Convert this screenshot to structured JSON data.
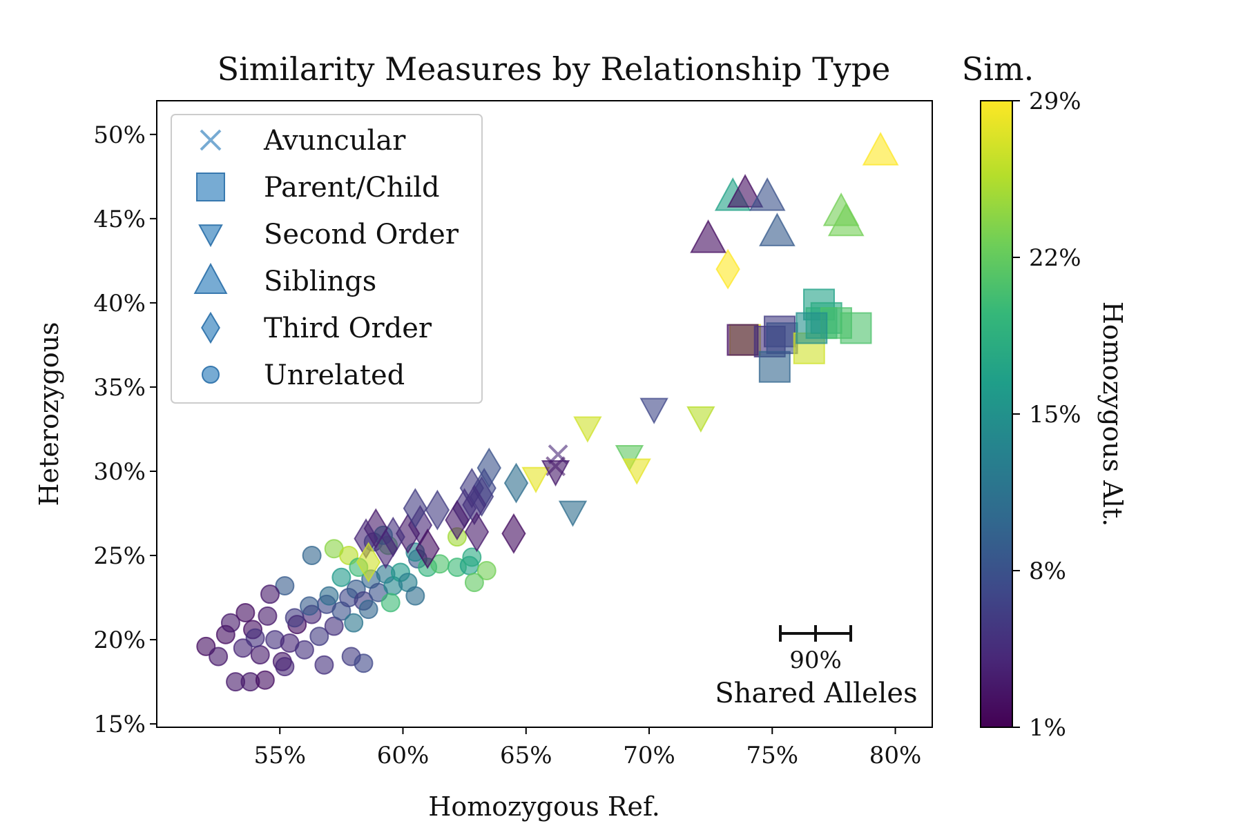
{
  "chart_data": {
    "type": "scatter",
    "title": "Similarity Measures by Relationship Type",
    "xlabel": "Homozygous Ref.",
    "ylabel": "Heterozygous",
    "xlim": [
      50,
      81.5
    ],
    "ylim": [
      14.8,
      52
    ],
    "x_ticks": [
      55,
      60,
      65,
      70,
      75,
      80
    ],
    "x_tick_labels": [
      "55%",
      "60%",
      "65%",
      "70%",
      "75%",
      "80%"
    ],
    "y_ticks": [
      15,
      20,
      25,
      30,
      35,
      40,
      45,
      50
    ],
    "y_tick_labels": [
      "15%",
      "20%",
      "25%",
      "30%",
      "35%",
      "40%",
      "45%",
      "50%"
    ],
    "grid": false,
    "legend_position": "upper-left",
    "colorbar": {
      "title": "Sim.",
      "label": "Homozygous Alt.",
      "range": [
        1,
        29
      ],
      "ticks": [
        1,
        8,
        15,
        22,
        29
      ],
      "tick_labels": [
        "1%",
        "8%",
        "15%",
        "22%",
        "29%"
      ],
      "colormap": [
        "#440154",
        "#482878",
        "#3e4989",
        "#31688e",
        "#26828e",
        "#1f9e89",
        "#35b779",
        "#6ece58",
        "#b5de2b",
        "#fde725"
      ]
    },
    "size_key": {
      "label": "Shared Alleles",
      "value_label": "90%"
    },
    "series": [
      {
        "name": "Avuncular",
        "marker": "x",
        "points": [
          [
            66.3,
            31.0,
            4
          ],
          [
            66.2,
            30.3,
            3
          ]
        ]
      },
      {
        "name": "Parent/Child",
        "marker": "square",
        "points": [
          [
            73.9,
            37.8,
            28
          ],
          [
            73.8,
            37.8,
            2
          ],
          [
            74.9,
            37.7,
            5
          ],
          [
            75.3,
            38.3,
            6
          ],
          [
            75.1,
            36.2,
            10
          ],
          [
            75.4,
            37.9,
            8
          ],
          [
            76.5,
            37.3,
            27
          ],
          [
            76.9,
            39.9,
            17
          ],
          [
            77.0,
            38.8,
            19
          ],
          [
            77.2,
            39.1,
            18
          ],
          [
            77.6,
            38.8,
            21
          ],
          [
            78.4,
            38.5,
            21
          ],
          [
            76.6,
            38.5,
            15
          ]
        ]
      },
      {
        "name": "Second Order",
        "marker": "triangle-down",
        "points": [
          [
            67.5,
            32.6,
            27
          ],
          [
            70.2,
            33.7,
            7
          ],
          [
            72.1,
            33.2,
            26
          ],
          [
            69.2,
            30.9,
            22
          ],
          [
            69.5,
            30.1,
            28
          ],
          [
            65.4,
            29.6,
            28
          ],
          [
            66.2,
            30.0,
            3
          ],
          [
            66.9,
            27.6,
            11
          ]
        ]
      },
      {
        "name": "Siblings",
        "marker": "triangle-up",
        "points": [
          [
            79.4,
            49.0,
            29
          ],
          [
            73.4,
            46.3,
            17
          ],
          [
            73.9,
            46.5,
            2
          ],
          [
            74.8,
            46.3,
            8
          ],
          [
            75.2,
            44.2,
            9
          ],
          [
            77.8,
            45.4,
            23
          ],
          [
            78.0,
            44.8,
            23
          ],
          [
            72.4,
            43.8,
            2
          ]
        ]
      },
      {
        "name": "Third Order",
        "marker": "diamond",
        "points": [
          [
            73.2,
            42.0,
            29
          ],
          [
            64.6,
            29.3,
            11
          ],
          [
            63.5,
            30.2,
            8
          ],
          [
            63.3,
            29.0,
            7
          ],
          [
            62.8,
            29.0,
            6
          ],
          [
            63.2,
            28.5,
            6
          ],
          [
            62.9,
            28.0,
            5
          ],
          [
            62.5,
            27.8,
            5
          ],
          [
            61.4,
            27.7,
            6
          ],
          [
            60.7,
            26.8,
            4
          ],
          [
            60.2,
            26.3,
            3
          ],
          [
            59.6,
            26.1,
            5
          ],
          [
            58.9,
            26.6,
            3
          ],
          [
            58.5,
            26.0,
            4
          ],
          [
            59.3,
            25.4,
            4
          ],
          [
            58.6,
            24.6,
            27
          ],
          [
            61.0,
            25.4,
            2
          ],
          [
            62.2,
            27.1,
            3
          ],
          [
            63.0,
            26.4,
            3
          ],
          [
            64.5,
            26.3,
            2
          ],
          [
            60.5,
            27.8,
            6
          ]
        ]
      },
      {
        "name": "Unrelated",
        "marker": "circle",
        "points": [
          [
            52.0,
            19.6,
            2
          ],
          [
            52.5,
            19.0,
            3
          ],
          [
            52.8,
            20.3,
            2
          ],
          [
            53.0,
            21.0,
            3
          ],
          [
            53.5,
            19.5,
            4
          ],
          [
            53.9,
            20.6,
            2
          ],
          [
            54.2,
            19.1,
            3
          ],
          [
            54.5,
            21.4,
            3
          ],
          [
            54.8,
            20.0,
            5
          ],
          [
            55.1,
            18.7,
            3
          ],
          [
            55.4,
            19.8,
            4
          ],
          [
            55.7,
            20.9,
            2
          ],
          [
            56.0,
            19.4,
            5
          ],
          [
            56.3,
            21.5,
            4
          ],
          [
            56.6,
            20.2,
            6
          ],
          [
            56.9,
            22.1,
            7
          ],
          [
            57.2,
            20.8,
            5
          ],
          [
            57.5,
            21.7,
            8
          ],
          [
            57.8,
            22.5,
            7
          ],
          [
            58.1,
            23.0,
            9
          ],
          [
            58.4,
            22.3,
            6
          ],
          [
            58.7,
            23.6,
            10
          ],
          [
            59.0,
            22.8,
            8
          ],
          [
            59.3,
            23.9,
            12
          ],
          [
            59.6,
            23.2,
            14
          ],
          [
            59.9,
            24.0,
            16
          ],
          [
            60.2,
            23.4,
            13
          ],
          [
            60.5,
            22.6,
            11
          ],
          [
            53.2,
            17.5,
            3
          ],
          [
            53.8,
            17.5,
            3
          ],
          [
            54.4,
            17.6,
            2
          ],
          [
            55.2,
            18.4,
            4
          ],
          [
            56.8,
            18.5,
            5
          ],
          [
            57.9,
            19.0,
            6
          ],
          [
            58.4,
            18.6,
            7
          ],
          [
            55.2,
            23.2,
            9
          ],
          [
            54.6,
            22.7,
            3
          ],
          [
            53.6,
            21.6,
            2
          ],
          [
            56.3,
            25.0,
            10
          ],
          [
            57.2,
            25.4,
            24
          ],
          [
            57.8,
            25.0,
            26
          ],
          [
            58.2,
            24.3,
            20
          ],
          [
            58.8,
            25.8,
            8
          ],
          [
            59.4,
            25.6,
            22
          ],
          [
            59.2,
            26.2,
            14
          ],
          [
            57.5,
            23.7,
            16
          ],
          [
            60.6,
            24.8,
            9
          ],
          [
            59.5,
            22.2,
            20
          ],
          [
            61.0,
            24.3,
            19
          ],
          [
            61.5,
            24.5,
            21
          ],
          [
            62.2,
            24.3,
            20
          ],
          [
            62.7,
            24.4,
            17
          ],
          [
            62.8,
            24.9,
            18
          ],
          [
            63.4,
            24.1,
            23
          ],
          [
            62.9,
            23.4,
            22
          ],
          [
            62.2,
            26.1,
            25
          ],
          [
            60.5,
            25.2,
            14
          ],
          [
            58.0,
            21.0,
            12
          ],
          [
            56.2,
            22.0,
            9
          ],
          [
            57.0,
            22.6,
            11
          ],
          [
            58.6,
            21.8,
            10
          ],
          [
            54.0,
            20.1,
            5
          ],
          [
            55.6,
            21.3,
            6
          ]
        ]
      }
    ]
  }
}
